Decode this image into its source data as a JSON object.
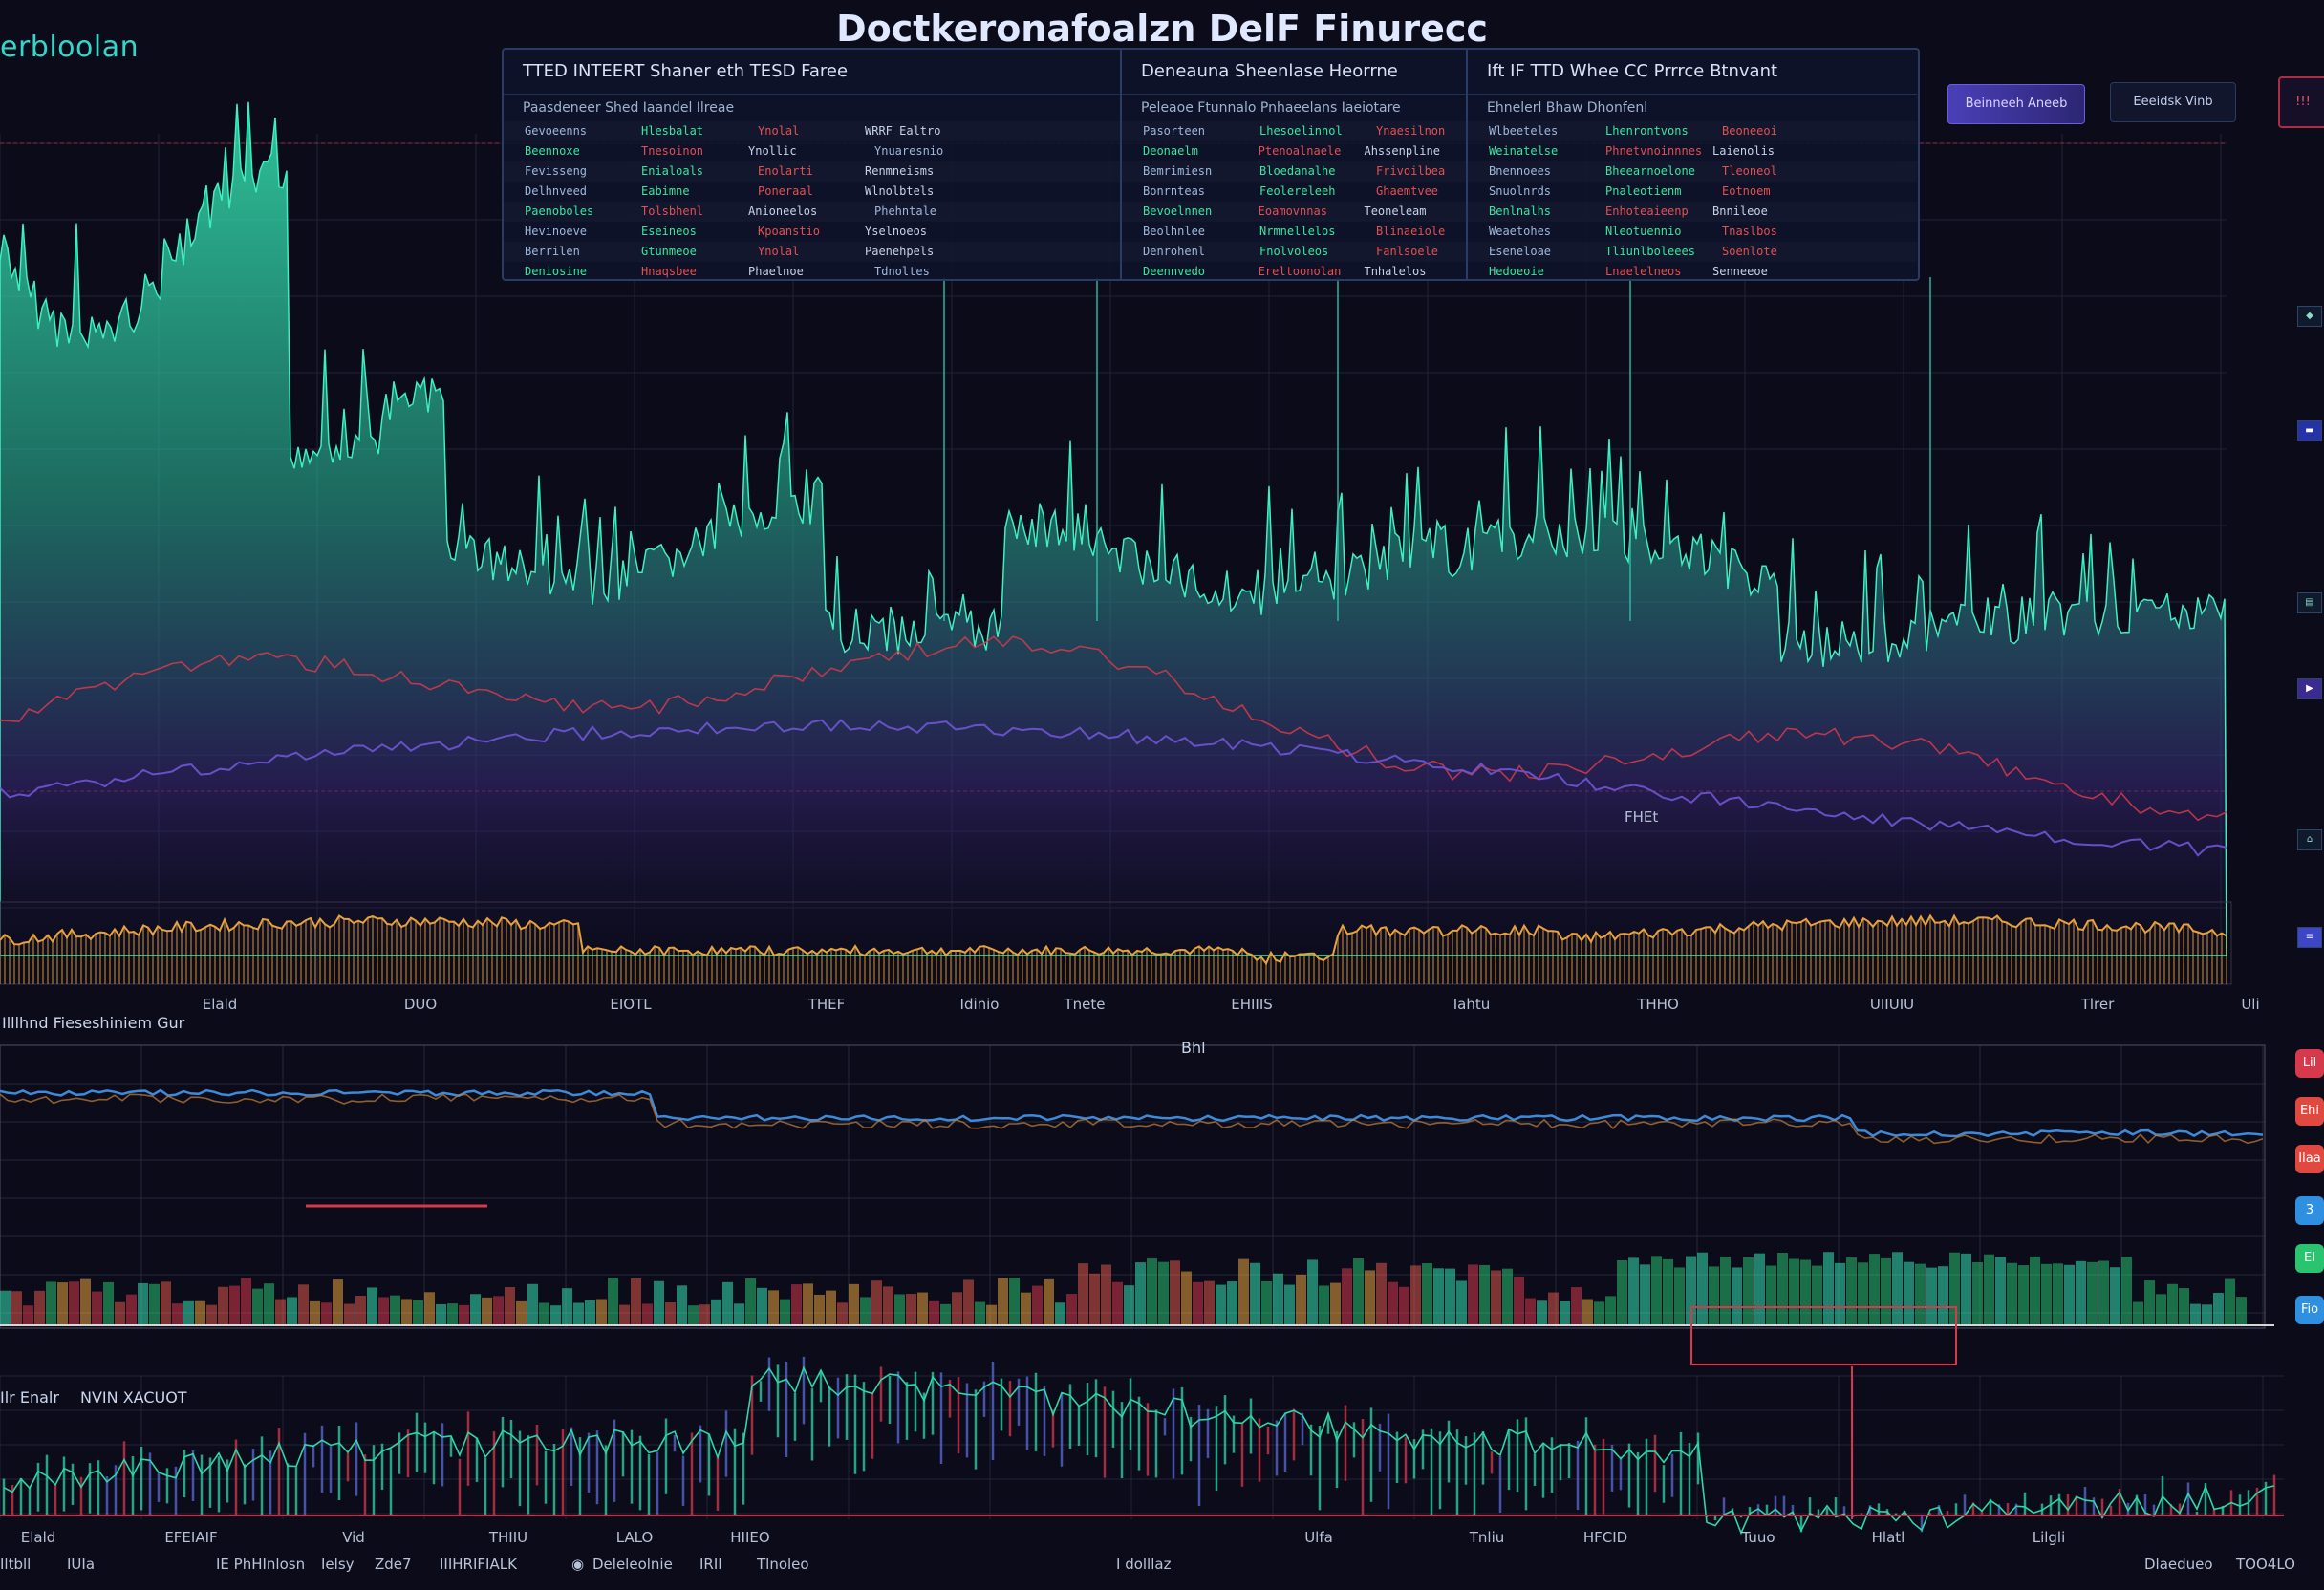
{
  "app": {
    "brand": "erbloolan",
    "title": "Doctkeronafoalzn DelF Finurecc"
  },
  "panel": {
    "columns": [
      {
        "header": "TTED     INTEERT   Shaner  eth   TESD  Faree",
        "subheader": "Paasdeneer  Shed  Iaandel      Ilreae",
        "rows": [
          [
            "Gevoeenns",
            "Hlesbalat",
            "Ynolal",
            "WRRF Ealtro"
          ],
          [
            "Beennoxe",
            "Tnesoinon",
            "Ynollic",
            "Ynuaresnio"
          ],
          [
            "Fevisseng",
            "Enialoals",
            "Enolarti",
            "Renmneisms"
          ],
          [
            "Delhnveed",
            "Eabimne",
            "Poneraal",
            "Wlnolbtels"
          ],
          [
            "Paenoboles",
            "Tolsbhenl",
            "Anioneelos",
            "Phehntale"
          ],
          [
            "Hevinoeve",
            "Eseineos",
            "Kpoanstio",
            "Yselnoeos"
          ],
          [
            "Berrilen",
            "Gtunmeoe",
            "Ynolal",
            "Paenehpels"
          ],
          [
            "Deniosine",
            "Hnaqsbee",
            "Phaelnoe",
            "Tdnoltes"
          ]
        ]
      },
      {
        "header": "Deneauna  Sheenlase  Heorrne",
        "subheader": "Peleaoe Ftunnalo  Pnhaeelans  Iaeiotare",
        "rows": [
          [
            "Pasorteen",
            "Lhesoelinnol",
            "Ynaesilnon"
          ],
          [
            "Deonaelm",
            "Ptenoalnaele",
            "Ahssenpline"
          ],
          [
            "Bemrimiesn",
            "Bloedanalhe",
            "Frivoilbea"
          ],
          [
            "Bonrnteas",
            "Feolereleeh",
            "Ghaemtvee"
          ],
          [
            "Bevoelnnen",
            "Eoamovnnas",
            "Teoneleam"
          ],
          [
            "Beolhnlee",
            "Nrmnellelos",
            "Blinaeiole"
          ],
          [
            "Denrohenl",
            "Fnolvoleos",
            "Fanlsoele"
          ],
          [
            "Deennvedo",
            "Ereltoonolan",
            "Tnhalelos"
          ]
        ]
      },
      {
        "header": "Ift  IF TTD   Whee   CC   Prrrce  Btnvant",
        "subheader": "Ehnelerl  Bhaw  Dhonfenl",
        "rows": [
          [
            "Wlbeeteles",
            "Lhenrontvons",
            "Beoneeoi"
          ],
          [
            "Weinatelse",
            "Phnetvnoinnnes",
            "Laienolis"
          ],
          [
            "Bnennoees",
            "Bheearnoelone",
            "Tleoneol"
          ],
          [
            "Snuolnrds",
            "Pnaleotienm",
            "Eotnoem"
          ],
          [
            "Benlnalhs",
            "Enhoteaieenp",
            "Bnnileoe"
          ],
          [
            "Weaetohes",
            "Nleotuennio",
            "Tnaslbos"
          ],
          [
            "Eseneloae",
            "Tliunlboleees",
            "Soenlote"
          ],
          [
            "Hedoeoie",
            "Lnaelelneos",
            "Senneeoe"
          ]
        ]
      }
    ]
  },
  "controls": {
    "btn_a": "Beinneeh Aneeb",
    "btn_b": "Eeeidsk  Vinb",
    "btn_c": "!!!"
  },
  "colors": {
    "background": "#0b0b1a",
    "teal": "#35e3b0",
    "purple": "#5a3fa8",
    "orange": "#e8a23c",
    "red": "#d6394b",
    "blue": "#2f8fe0"
  },
  "main_chart": {
    "x_labels": [
      "Elald",
      "DUO",
      "EIOTL",
      "THEF",
      "Idinio",
      "Tnete",
      "EHIIIS",
      "Iahtu",
      "THHO",
      "UIIUIU",
      "Tlrer",
      "Uli"
    ],
    "subtitle": "Illlhnd Fieseshiniem Gur",
    "mid_label": "Bhl",
    "price_label": "FHEt"
  },
  "lower_chart": {
    "title_left": "Ilr Enalr",
    "title_right": "NVIN XACUOT",
    "x_labels": [
      "Elald",
      "EFEIAIF",
      "Vid",
      "THIIU",
      "LALO",
      "HIIEO",
      "Ulfa",
      "Tnliu",
      "HFCID",
      "Tuuo",
      "Hlatl",
      "Lilgli"
    ]
  },
  "bottom_bar": {
    "left1": "Iltbll",
    "left2": "IUIa",
    "mid1": "IE PhHInlosn",
    "mid2": "Ielsy",
    "mid3": "Zde7",
    "mid4": "IIIHRIFIALK",
    "mid5": "Deleleolnie",
    "mid6": "IRII",
    "mid7": "Tlnoleo",
    "mid8": "I dolllaz",
    "right1": "Dlaedueo",
    "right2": "TOO4LO"
  },
  "side_badges": [
    "Lil",
    "Ehi",
    "Ilaa",
    "3",
    "EI",
    "Fio"
  ]
}
